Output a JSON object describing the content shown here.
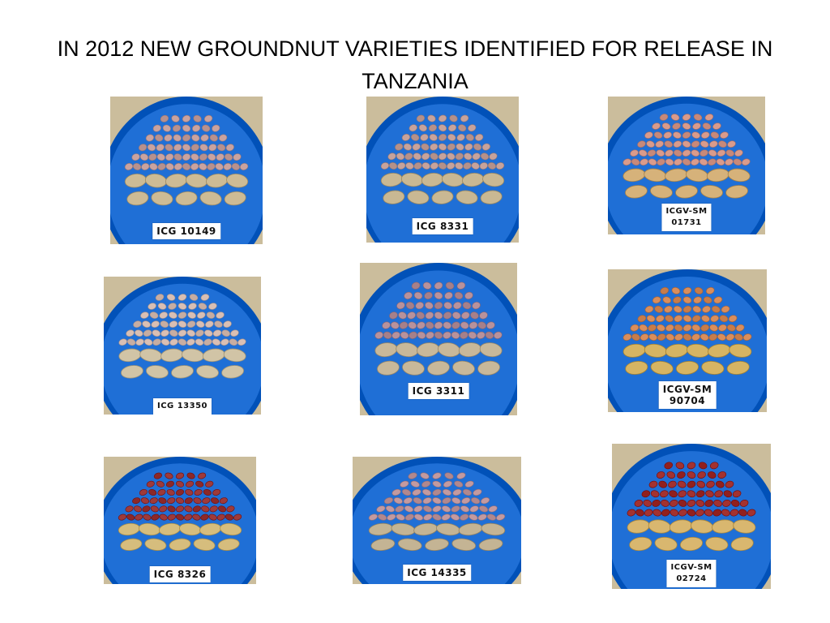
{
  "slide": {
    "title": "IN 2012 NEW GROUNDNUT VARIETIES IDENTIFIED FOR RELEASE IN TANZANIA"
  },
  "varieties": [
    {
      "label": "ICG 10149",
      "kernel_color": "#c9a3a0",
      "pod_color": "#cdbb95",
      "bowl_color": "#1f6fd6"
    },
    {
      "label": "ICG 8331",
      "kernel_color": "#c7a39c",
      "pod_color": "#c9b893",
      "bowl_color": "#1f6fd6"
    },
    {
      "label": "ICGV-SM\n01731",
      "kernel_color": "#d99b8c",
      "pod_color": "#d6b27a",
      "bowl_color": "#1f6fd6"
    },
    {
      "label": "ICG 13350",
      "kernel_color": "#d9bfb4",
      "pod_color": "#d1c4a6",
      "bowl_color": "#1f6fd6"
    },
    {
      "label": "ICG 3311",
      "kernel_color": "#b8929c",
      "pod_color": "#c8b89a",
      "bowl_color": "#1f6fd6"
    },
    {
      "label": "ICGV-SM\n90704",
      "kernel_color": "#d98e5c",
      "pod_color": "#d6b463",
      "bowl_color": "#1f6fd6"
    },
    {
      "label": "ICG 8326",
      "kernel_color": "#9e3a3a",
      "pod_color": "#d6bd7d",
      "bowl_color": "#1f6fd6"
    },
    {
      "label": "ICG 14335",
      "kernel_color": "#c39aa0",
      "pod_color": "#c4b494",
      "bowl_color": "#1f6fd6"
    },
    {
      "label": "ICGV-SM\n02724",
      "kernel_color": "#a33230",
      "pod_color": "#d9b76f",
      "bowl_color": "#1f6fd6"
    }
  ]
}
